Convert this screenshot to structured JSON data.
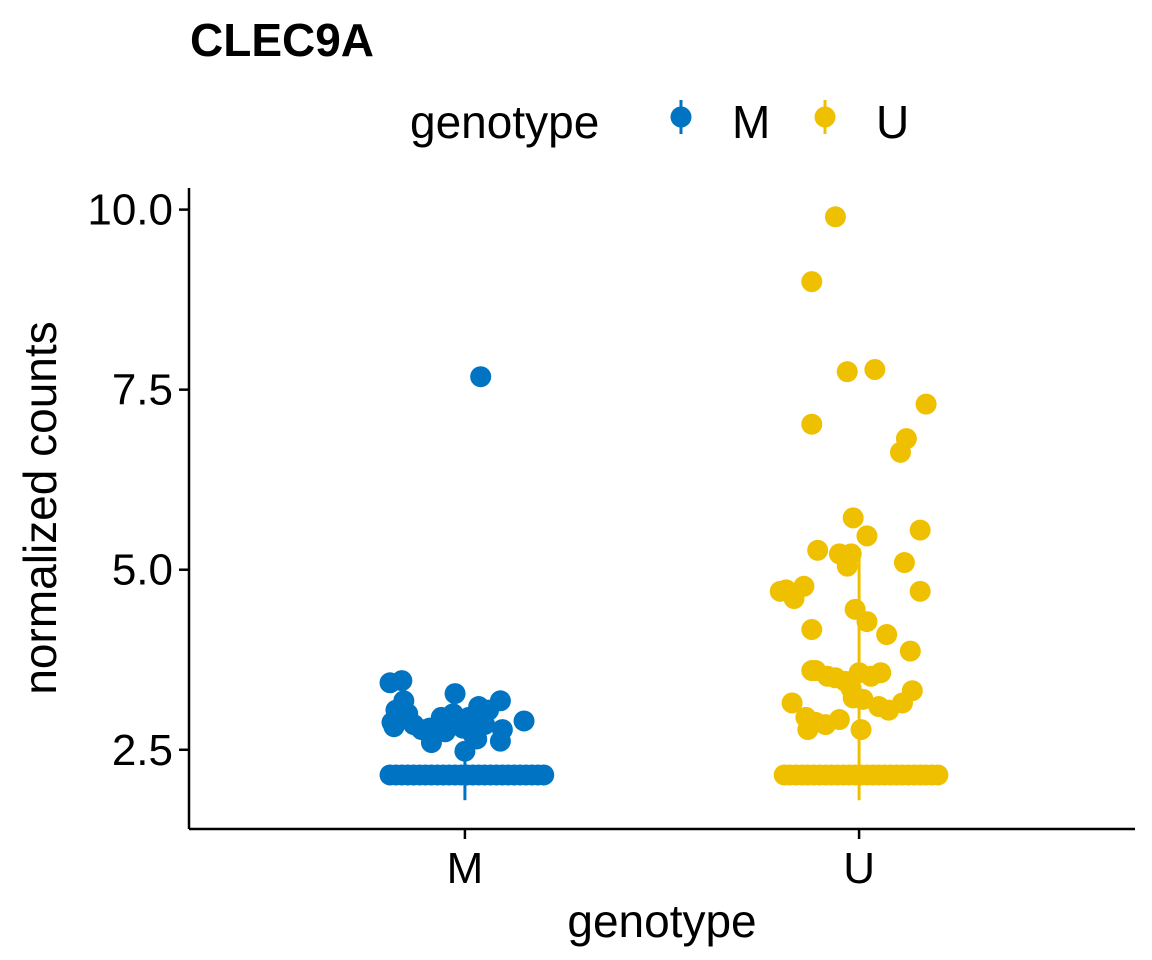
{
  "chart_data": {
    "type": "scatter",
    "title": "CLEC9A",
    "xlabel": "genotype",
    "ylabel": "normalized counts",
    "categories": [
      "M",
      "U"
    ],
    "ylim": [
      1.4,
      10.3
    ],
    "yticks": [
      2.5,
      5.0,
      7.5,
      10.0
    ],
    "ytick_labels": [
      "2.5",
      "5.0",
      "7.5",
      "10.0"
    ],
    "legend": {
      "title": "genotype",
      "position": "top",
      "entries": [
        "M",
        "U"
      ]
    },
    "colors": {
      "M": "#0073C2",
      "U": "#EFC000"
    },
    "grid": false,
    "series": [
      {
        "name": "M",
        "category": "M",
        "range": [
          1.8,
          2.55
        ],
        "points": [
          [
            -0.19,
            2.15
          ],
          [
            -0.175,
            2.15
          ],
          [
            -0.16,
            2.15
          ],
          [
            -0.145,
            2.15
          ],
          [
            -0.13,
            2.15
          ],
          [
            -0.115,
            2.15
          ],
          [
            -0.1,
            2.15
          ],
          [
            -0.085,
            2.15
          ],
          [
            -0.07,
            2.15
          ],
          [
            -0.055,
            2.15
          ],
          [
            -0.04,
            2.15
          ],
          [
            -0.025,
            2.15
          ],
          [
            -0.01,
            2.15
          ],
          [
            0.005,
            2.15
          ],
          [
            0.02,
            2.15
          ],
          [
            0.035,
            2.15
          ],
          [
            0.05,
            2.15
          ],
          [
            0.065,
            2.15
          ],
          [
            0.08,
            2.15
          ],
          [
            0.095,
            2.15
          ],
          [
            0.11,
            2.15
          ],
          [
            0.125,
            2.15
          ],
          [
            0.14,
            2.15
          ],
          [
            0.155,
            2.15
          ],
          [
            0.17,
            2.15
          ],
          [
            0.185,
            2.15
          ],
          [
            0.2,
            2.15
          ],
          [
            0.04,
            7.68
          ],
          [
            -0.19,
            3.43
          ],
          [
            -0.16,
            3.46
          ],
          [
            -0.155,
            3.18
          ],
          [
            -0.175,
            3.05
          ],
          [
            -0.185,
            2.88
          ],
          [
            -0.16,
            2.95
          ],
          [
            -0.145,
            3.0
          ],
          [
            -0.13,
            2.85
          ],
          [
            -0.11,
            2.78
          ],
          [
            -0.085,
            2.6
          ],
          [
            -0.09,
            2.8
          ],
          [
            -0.06,
            2.95
          ],
          [
            -0.05,
            2.75
          ],
          [
            -0.03,
            3.0
          ],
          [
            -0.025,
            3.28
          ],
          [
            -0.02,
            2.88
          ],
          [
            -0.005,
            2.8
          ],
          [
            0.0,
            2.48
          ],
          [
            0.01,
            2.95
          ],
          [
            0.03,
            2.65
          ],
          [
            0.035,
            3.1
          ],
          [
            0.06,
            3.05
          ],
          [
            0.09,
            3.18
          ],
          [
            0.095,
            2.78
          ],
          [
            0.09,
            2.62
          ],
          [
            0.15,
            2.9
          ],
          [
            -0.18,
            2.82
          ],
          [
            0.05,
            2.85
          ],
          [
            0.02,
            2.72
          ],
          [
            -0.04,
            2.9
          ]
        ]
      },
      {
        "name": "U",
        "category": "U",
        "range": [
          1.8,
          5.3
        ],
        "points": [
          [
            -0.19,
            2.15
          ],
          [
            -0.175,
            2.15
          ],
          [
            -0.16,
            2.15
          ],
          [
            -0.145,
            2.15
          ],
          [
            -0.13,
            2.15
          ],
          [
            -0.115,
            2.15
          ],
          [
            -0.1,
            2.15
          ],
          [
            -0.085,
            2.15
          ],
          [
            -0.07,
            2.15
          ],
          [
            -0.055,
            2.15
          ],
          [
            -0.04,
            2.15
          ],
          [
            -0.025,
            2.15
          ],
          [
            -0.01,
            2.15
          ],
          [
            0.005,
            2.15
          ],
          [
            0.02,
            2.15
          ],
          [
            0.035,
            2.15
          ],
          [
            0.05,
            2.15
          ],
          [
            0.065,
            2.15
          ],
          [
            0.08,
            2.15
          ],
          [
            0.095,
            2.15
          ],
          [
            0.11,
            2.15
          ],
          [
            0.125,
            2.15
          ],
          [
            0.14,
            2.15
          ],
          [
            0.155,
            2.15
          ],
          [
            0.17,
            2.15
          ],
          [
            0.185,
            2.15
          ],
          [
            0.2,
            2.15
          ],
          [
            -0.06,
            9.9
          ],
          [
            -0.12,
            9.0
          ],
          [
            -0.03,
            7.75
          ],
          [
            0.04,
            7.78
          ],
          [
            0.17,
            7.3
          ],
          [
            -0.12,
            7.02
          ],
          [
            0.12,
            6.82
          ],
          [
            0.105,
            6.63
          ],
          [
            -0.015,
            5.72
          ],
          [
            0.155,
            5.55
          ],
          [
            0.02,
            5.47
          ],
          [
            -0.105,
            5.27
          ],
          [
            -0.05,
            5.22
          ],
          [
            -0.02,
            5.22
          ],
          [
            -0.03,
            5.05
          ],
          [
            0.115,
            5.1
          ],
          [
            -0.2,
            4.7
          ],
          [
            -0.185,
            4.72
          ],
          [
            -0.165,
            4.6
          ],
          [
            -0.14,
            4.77
          ],
          [
            0.155,
            4.7
          ],
          [
            -0.01,
            4.45
          ],
          [
            0.02,
            4.28
          ],
          [
            -0.12,
            4.17
          ],
          [
            0.07,
            4.1
          ],
          [
            0.13,
            3.87
          ],
          [
            -0.12,
            3.6
          ],
          [
            -0.11,
            3.6
          ],
          [
            -0.08,
            3.52
          ],
          [
            -0.06,
            3.5
          ],
          [
            -0.035,
            3.45
          ],
          [
            0.0,
            3.57
          ],
          [
            0.03,
            3.52
          ],
          [
            0.055,
            3.57
          ],
          [
            -0.02,
            3.35
          ],
          [
            -0.015,
            3.22
          ],
          [
            0.01,
            3.2
          ],
          [
            0.135,
            3.32
          ],
          [
            -0.17,
            3.15
          ],
          [
            0.05,
            3.1
          ],
          [
            0.075,
            3.05
          ],
          [
            0.11,
            3.15
          ],
          [
            -0.135,
            2.95
          ],
          [
            -0.11,
            2.88
          ],
          [
            -0.085,
            2.85
          ],
          [
            -0.05,
            2.92
          ],
          [
            -0.13,
            2.78
          ],
          [
            0.005,
            2.78
          ]
        ]
      }
    ]
  }
}
